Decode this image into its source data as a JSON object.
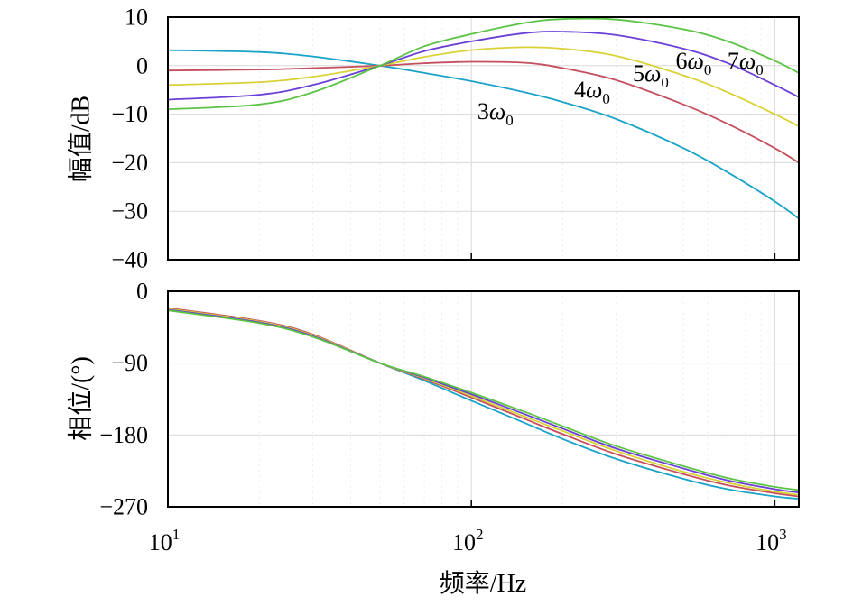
{
  "chart_data": [
    {
      "type": "line",
      "name": "magnitude",
      "ylabel": "幅值/dB",
      "xlabel": "",
      "xscale": "log",
      "xlim": [
        10,
        1200
      ],
      "ylim": [
        -40,
        10
      ],
      "yticks": [
        10,
        0,
        -10,
        -20,
        -30,
        -40
      ],
      "ytick_labels": [
        "10",
        "0",
        "−10",
        "−20",
        "−30",
        "−40"
      ],
      "grid": true,
      "series": [
        {
          "name": "3ω0",
          "label": "3",
          "color": "#1aa3c8",
          "x": [
            10,
            20,
            30,
            50,
            70,
            100,
            150,
            200,
            300,
            500,
            700,
            1000,
            1200
          ],
          "y": [
            3.2,
            2.8,
            1.9,
            0,
            -1.5,
            -3.2,
            -5.5,
            -7.5,
            -11,
            -17,
            -22,
            -28,
            -31.5
          ]
        },
        {
          "name": "4ω0",
          "label": "4",
          "color": "#c44f5e",
          "x": [
            10,
            20,
            30,
            50,
            70,
            100,
            150,
            200,
            300,
            500,
            700,
            1000,
            1200
          ],
          "y": [
            -1,
            -0.8,
            -0.5,
            0,
            0.5,
            0.8,
            0.6,
            -0.5,
            -3,
            -8,
            -12,
            -17,
            -20
          ]
        },
        {
          "name": "5ω0",
          "label": "5",
          "color": "#d9d235",
          "x": [
            10,
            20,
            30,
            50,
            70,
            100,
            150,
            200,
            300,
            500,
            700,
            1000,
            1200
          ],
          "y": [
            -4,
            -3.4,
            -2.3,
            0,
            1.8,
            3.2,
            3.8,
            3.5,
            2,
            -2,
            -5.5,
            -10,
            -12.5
          ]
        },
        {
          "name": "6ω0",
          "label": "6",
          "color": "#6a3fd6",
          "x": [
            10,
            20,
            30,
            50,
            70,
            100,
            150,
            200,
            300,
            500,
            700,
            1000,
            1200
          ],
          "y": [
            -7,
            -6,
            -4,
            0,
            3,
            5,
            6.7,
            7,
            6.3,
            3.5,
            0.5,
            -4,
            -6.5
          ]
        },
        {
          "name": "7ω0",
          "label": "7",
          "color": "#5cc445",
          "x": [
            10,
            20,
            30,
            50,
            70,
            100,
            150,
            200,
            300,
            500,
            700,
            1000,
            1200
          ],
          "y": [
            -9,
            -8,
            -5.5,
            0,
            4,
            6.5,
            8.8,
            9.6,
            9.5,
            7.5,
            5,
            1,
            -1.5
          ]
        }
      ],
      "annotations": [
        {
          "series": "3ω0",
          "prefix": "3",
          "symbol": "ω",
          "sub": "0",
          "x": 120,
          "y": -11
        },
        {
          "series": "4ω0",
          "prefix": "4",
          "symbol": "ω",
          "sub": "0",
          "x": 250,
          "y": -6.5
        },
        {
          "series": "5ω0",
          "prefix": "5",
          "symbol": "ω",
          "sub": "0",
          "x": 390,
          "y": -3.2
        },
        {
          "series": "6ω0",
          "prefix": "6",
          "symbol": "ω",
          "sub": "0",
          "x": 540,
          "y": -0.6
        },
        {
          "series": "7ω0",
          "prefix": "7",
          "symbol": "ω",
          "sub": "0",
          "x": 800,
          "y": -0.6
        }
      ]
    },
    {
      "type": "line",
      "name": "phase",
      "ylabel": "相位/(°)",
      "xlabel": "频率/Hz",
      "xscale": "log",
      "xlim": [
        10,
        1200
      ],
      "ylim": [
        -270,
        0
      ],
      "yticks": [
        0,
        -90,
        -180,
        -270
      ],
      "ytick_labels": [
        "0",
        "−90",
        "−180",
        "−270"
      ],
      "xtick_values": [
        10,
        100,
        1000
      ],
      "xtick_labels": [
        {
          "base": "10",
          "exp": "1"
        },
        {
          "base": "10",
          "exp": "2"
        },
        {
          "base": "10",
          "exp": "3"
        }
      ],
      "grid": true,
      "series": [
        {
          "name": "3ω0",
          "color": "#1aa3c8",
          "x": [
            10,
            20,
            30,
            50,
            70,
            100,
            150,
            200,
            300,
            500,
            700,
            1000,
            1200
          ],
          "y": [
            -22,
            -38,
            -55,
            -90,
            -112,
            -137,
            -165,
            -185,
            -210,
            -235,
            -248,
            -257,
            -260
          ]
        },
        {
          "name": "4ω0",
          "color": "#c44f5e",
          "x": [
            10,
            20,
            30,
            50,
            70,
            100,
            150,
            200,
            300,
            500,
            700,
            1000,
            1200
          ],
          "y": [
            -21,
            -37,
            -54,
            -90,
            -110,
            -133,
            -160,
            -179,
            -204,
            -229,
            -243,
            -253,
            -257
          ]
        },
        {
          "name": "5ω0",
          "color": "#d9d235",
          "x": [
            10,
            20,
            30,
            50,
            70,
            100,
            150,
            200,
            300,
            500,
            700,
            1000,
            1200
          ],
          "y": [
            -22,
            -38,
            -55,
            -90,
            -109,
            -131,
            -157,
            -175,
            -200,
            -226,
            -240,
            -251,
            -255
          ]
        },
        {
          "name": "6ω0",
          "color": "#6a3fd6",
          "x": [
            10,
            20,
            30,
            50,
            70,
            100,
            150,
            200,
            300,
            500,
            700,
            1000,
            1200
          ],
          "y": [
            -23,
            -39,
            -56,
            -90,
            -108,
            -129,
            -154,
            -172,
            -197,
            -222,
            -237,
            -248,
            -252
          ]
        },
        {
          "name": "7ω0",
          "color": "#5cc445",
          "x": [
            10,
            20,
            30,
            50,
            70,
            100,
            150,
            200,
            300,
            500,
            700,
            1000,
            1200
          ],
          "y": [
            -24,
            -40,
            -57,
            -90,
            -107,
            -127,
            -151,
            -169,
            -194,
            -219,
            -234,
            -245,
            -249
          ]
        }
      ]
    }
  ]
}
